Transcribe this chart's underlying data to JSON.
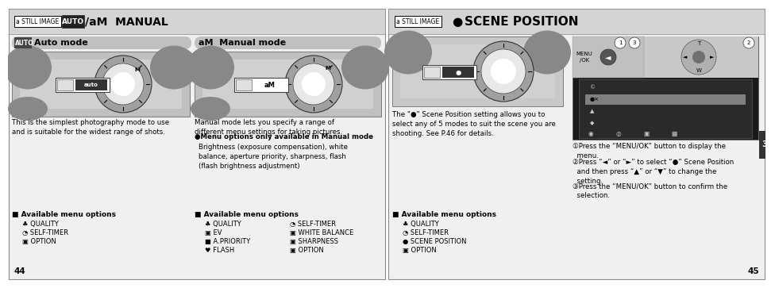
{
  "bg_color": "#ffffff",
  "header_bg": "#d4d4d4",
  "section_bar_bg": "#c0c0c0",
  "left_page": {
    "header_still_image": "a STILL IMAGE",
    "header_main": "AUTO/aM  MANUAL",
    "sec1_label": "AUTO  Auto mode",
    "sec2_label": "aM  Manual mode",
    "auto_desc": "This is the simplest photography mode to use\nand is suitable for the widest range of shots.",
    "manual_desc": "Manual mode lets you specify a range of\ndifferent menu settings for taking pictures.",
    "manual_bullet_bold": "●Menu options only available in Manual mode",
    "manual_bullet_text": "Brightness (exposure compensation), white\nbalance, aperture priority, sharpness, flash\n(flash brightness adjustment)",
    "menu_left_title": "■ Available menu options",
    "menu_left_items": [
      "♣ QUALITY",
      "◔ SELF-TIMER",
      "▣ OPTION"
    ],
    "menu_right_title": "■ Available menu options",
    "menu_right_col1": [
      "♣ QUALITY",
      "▣ EV",
      "■ A.PRIORITY",
      "♥ FLASH"
    ],
    "menu_right_col2": [
      "◔ SELF-TIMER",
      "▣ WHITE BALANCE",
      "▣ SHARPNESS",
      "▣ OPTION"
    ],
    "page_num": "44"
  },
  "right_page": {
    "header_still_image": "a STILL IMAGE",
    "header_main": "● SCENE POSITION",
    "scene_desc": "The \"●\" Scene Position setting allows you to\nselect any of 5 modes to suit the scene you are\nshooting. See P.46 for details.",
    "menu_title": "■ Available menu options",
    "menu_items": [
      "♣ QUALITY",
      "◔ SELF-TIMER",
      "● SCENE POSITION",
      "▣ OPTION"
    ],
    "step1": "①Press the “MENU/OK” button to display the\n  menu.",
    "step2": "②Press “◄” or “►” to select “●” Scene Position\n  and then press “▲” or “▼” to change the\n  setting.",
    "step3": "③Press the “MENU/OK” button to confirm the\n  selection.",
    "tab_label": "3",
    "page_num": "45"
  }
}
